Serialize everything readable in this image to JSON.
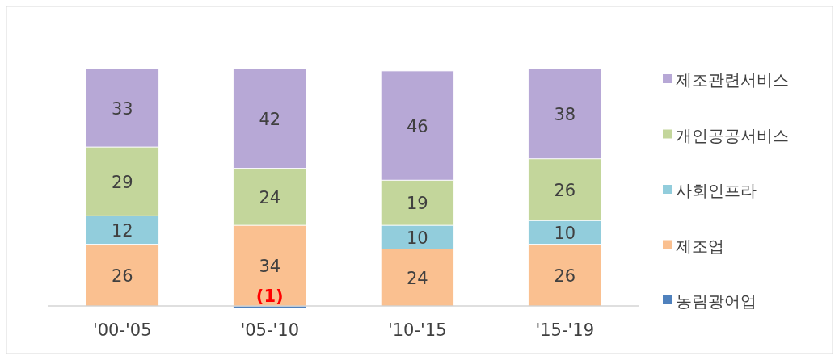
{
  "chart_data": {
    "type": "bar",
    "stacked": true,
    "legend": "right",
    "categories": [
      "'00-'05",
      "'05-'10",
      "'10-'15",
      "'15-'19"
    ],
    "series": [
      {
        "name": "농림광어업",
        "color": "#4f81bd",
        "values": [
          0,
          -1,
          null,
          0
        ],
        "value_labels": [
          null,
          "(1)",
          null,
          null
        ]
      },
      {
        "name": "제조업",
        "color": "#fac090",
        "values": [
          26,
          34,
          24,
          26
        ],
        "value_labels": [
          "26",
          "34",
          "24",
          "26"
        ]
      },
      {
        "name": "사회인프라",
        "color": "#92cddc",
        "values": [
          12,
          null,
          10,
          10
        ],
        "value_labels": [
          "12",
          null,
          "10",
          "10"
        ]
      },
      {
        "name": "개인공공서비스",
        "color": "#c3d69b",
        "values": [
          29,
          24,
          19,
          26
        ],
        "value_labels": [
          "29",
          "24",
          "19",
          "26"
        ]
      },
      {
        "name": "제조관련서비스",
        "color": "#b7a8d6",
        "values": [
          33,
          42,
          46,
          38
        ],
        "value_labels": [
          "33",
          "42",
          "46",
          "38"
        ]
      }
    ]
  }
}
